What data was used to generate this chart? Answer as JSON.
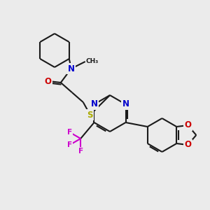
{
  "background_color": "#ebebeb",
  "bond_color": "#1a1a1a",
  "atom_colors": {
    "N": "#0000cc",
    "O": "#cc0000",
    "S": "#aaaa00",
    "F": "#cc00cc",
    "C": "#1a1a1a"
  },
  "figsize": [
    3.0,
    3.0
  ],
  "dpi": 100,
  "lw": 1.5,
  "fontsize": 8.5
}
